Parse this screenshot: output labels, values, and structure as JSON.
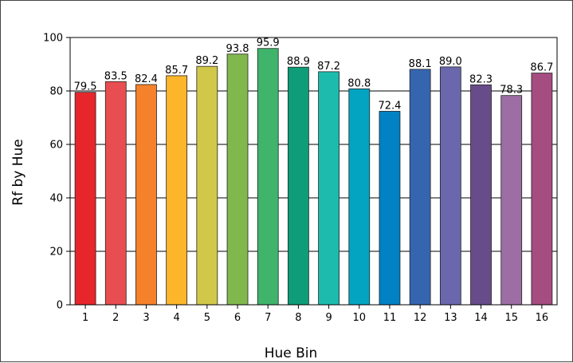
{
  "chart_data": {
    "type": "bar",
    "title": "",
    "xlabel": "Hue Bin",
    "ylabel": "Rf by Hue",
    "ylim": [
      0,
      100
    ],
    "yticks": [
      0,
      20,
      40,
      60,
      80,
      100
    ],
    "grid": true,
    "categories": [
      "1",
      "2",
      "3",
      "4",
      "5",
      "6",
      "7",
      "8",
      "9",
      "10",
      "11",
      "12",
      "13",
      "14",
      "15",
      "16"
    ],
    "values": [
      79.5,
      83.5,
      82.4,
      85.7,
      89.2,
      93.8,
      95.9,
      88.9,
      87.2,
      80.8,
      72.4,
      88.1,
      89.0,
      82.3,
      78.3,
      86.7
    ],
    "data_labels": [
      "79.5",
      "83.5",
      "82.4",
      "85.7",
      "89.2",
      "93.8",
      "95.9",
      "88.9",
      "87.2",
      "80.8",
      "72.4",
      "88.1",
      "89.0",
      "82.3",
      "78.3",
      "86.7"
    ],
    "colors": [
      "#e7262b",
      "#e84e51",
      "#f5822a",
      "#fdb62a",
      "#d1c84a",
      "#80b84e",
      "#3fb46a",
      "#0e9c79",
      "#1cbbae",
      "#02a4c1",
      "#0082c4",
      "#3665b0",
      "#6a67ad",
      "#684c8a",
      "#9c6ea4",
      "#a54c80"
    ]
  }
}
